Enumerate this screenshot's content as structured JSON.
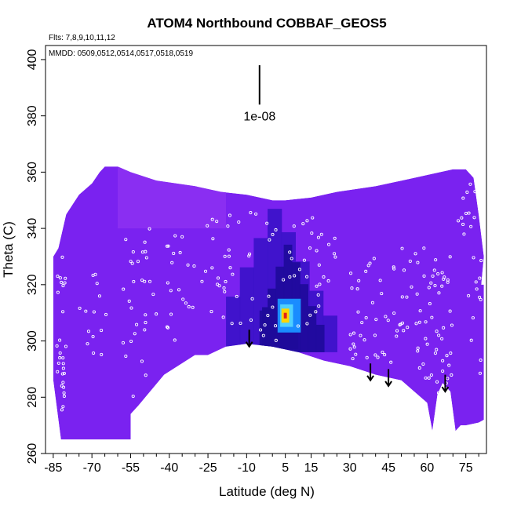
{
  "chart_data": {
    "type": "heatmap",
    "title": "ATOM4 Northbound COBBAF_GEOS5",
    "subtitle_flights": "Flts: 7,8,9,10,11,12",
    "subtitle_dates": "MMDD: 0509,0512,0514,0517,0518,0519",
    "xlabel": "Latitude (deg N)",
    "ylabel": "Theta (C)",
    "xlim": [
      -88,
      83
    ],
    "ylim": [
      260,
      405
    ],
    "x_ticks": [
      -85,
      -70,
      -55,
      -40,
      -25,
      -10,
      5,
      15,
      30,
      45,
      60,
      75
    ],
    "y_ticks": [
      260,
      280,
      300,
      320,
      340,
      360,
      380,
      400
    ],
    "scale_label": "1e-08",
    "scale_bar": {
      "x": -5,
      "y_bottom": 384,
      "y_top": 398
    },
    "colors": {
      "background_field": "#7a22f0",
      "dark_field": "#3a12c8",
      "darker_field": "#1e0a9a",
      "light_field": "#8a2ef2",
      "peak_blue": "#1a8cff",
      "peak_cyan": "#4fd0ff",
      "peak_yellow": "#ffd400",
      "peak_red": "#e0201a",
      "obs_points": "#ffffff"
    },
    "field_envelope": {
      "top": [
        [
          -85,
          330
        ],
        [
          -83,
          333
        ],
        [
          -80,
          345
        ],
        [
          -75,
          352
        ],
        [
          -70,
          356
        ],
        [
          -67,
          360
        ],
        [
          -65,
          362
        ],
        [
          -60,
          362
        ],
        [
          -55,
          360
        ],
        [
          -45,
          357
        ],
        [
          -30,
          355
        ],
        [
          -20,
          353
        ],
        [
          -10,
          352
        ],
        [
          0,
          350
        ],
        [
          5,
          350
        ],
        [
          15,
          351
        ],
        [
          25,
          353
        ],
        [
          40,
          355
        ],
        [
          55,
          358
        ],
        [
          65,
          360
        ],
        [
          70,
          361
        ],
        [
          75,
          361
        ],
        [
          78,
          358
        ],
        [
          80,
          345
        ],
        [
          82,
          330
        ],
        [
          81,
          320
        ]
      ],
      "bottom": [
        [
          -85,
          286
        ],
        [
          -82,
          265
        ],
        [
          -55,
          265
        ],
        [
          -55,
          274
        ],
        [
          -52,
          277
        ],
        [
          -42,
          288
        ],
        [
          -30,
          295
        ],
        [
          -25,
          295
        ],
        [
          -18,
          298
        ],
        [
          -10,
          299
        ],
        [
          0,
          298
        ],
        [
          10,
          296
        ],
        [
          20,
          293
        ],
        [
          30,
          291
        ],
        [
          40,
          288
        ],
        [
          50,
          286
        ],
        [
          55,
          282
        ],
        [
          60,
          278
        ],
        [
          62,
          268
        ],
        [
          64,
          281
        ],
        [
          66,
          285
        ],
        [
          68,
          283
        ],
        [
          69,
          282
        ],
        [
          71,
          268
        ],
        [
          73,
          270
        ],
        [
          75,
          270
        ],
        [
          80,
          271
        ],
        [
          82,
          272
        ],
        [
          82,
          320
        ]
      ]
    },
    "enhancement_regions": [
      {
        "level": "dark",
        "x": [
          -18,
          25
        ],
        "y": [
          296,
          348
        ]
      },
      {
        "level": "darker",
        "x": [
          -5,
          20
        ],
        "y": [
          296,
          335
        ]
      }
    ],
    "peak": {
      "x": 5,
      "y": 309
    },
    "obs_points": [
      {
        "x_range": [
          -84,
          -80
        ],
        "y_range": [
          270,
          330
        ],
        "count": 28
      },
      {
        "x_range": [
          -75,
          -62
        ],
        "y_range": [
          295,
          325
        ],
        "count": 14
      },
      {
        "x_range": [
          -58,
          -45
        ],
        "y_range": [
          280,
          340
        ],
        "count": 30
      },
      {
        "x_range": [
          -42,
          -30
        ],
        "y_range": [
          300,
          338
        ],
        "count": 20
      },
      {
        "x_range": [
          -28,
          -12
        ],
        "y_range": [
          305,
          345
        ],
        "count": 26
      },
      {
        "x_range": [
          -10,
          25
        ],
        "y_range": [
          300,
          346
        ],
        "count": 50
      },
      {
        "x_range": [
          30,
          45
        ],
        "y_range": [
          292,
          330
        ],
        "count": 32
      },
      {
        "x_range": [
          45,
          60
        ],
        "y_range": [
          280,
          335
        ],
        "count": 36
      },
      {
        "x_range": [
          60,
          70
        ],
        "y_range": [
          280,
          330
        ],
        "count": 44
      },
      {
        "x_range": [
          72,
          79
        ],
        "y_range": [
          335,
          360
        ],
        "count": 12
      },
      {
        "x_range": [
          75,
          81
        ],
        "y_range": [
          288,
          330
        ],
        "count": 12
      }
    ],
    "arrows": [
      {
        "x": -9,
        "y_top": 304,
        "y_bottom": 298
      },
      {
        "x": 38,
        "y_top": 292,
        "y_bottom": 286
      },
      {
        "x": 45,
        "y_top": 290,
        "y_bottom": 284
      },
      {
        "x": 67,
        "y_top": 288,
        "y_bottom": 282
      }
    ]
  }
}
